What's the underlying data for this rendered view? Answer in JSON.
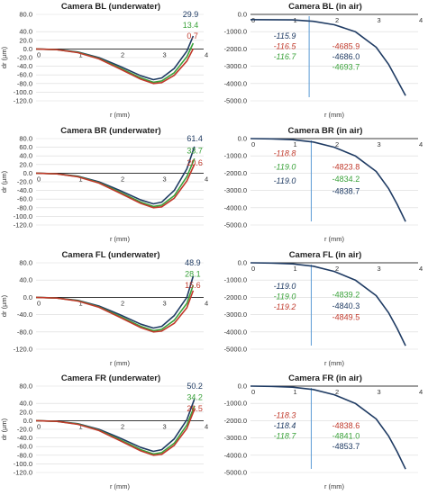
{
  "colors": {
    "blue": "#1F3B63",
    "green": "#3AA23A",
    "red": "#C0392B",
    "vline": "#5B9BD5",
    "grid": "#D9D9D9",
    "axis": "#000000"
  },
  "chart_data": [
    {
      "id": "bl-water",
      "type": "line",
      "title": "Camera BL (underwater)",
      "xlabel": "r (mm)",
      "ylabel": "dr (µm)",
      "xlim": [
        0,
        4
      ],
      "ylim": [
        -120,
        80
      ],
      "yticks": [
        "80.0",
        "40.0",
        "20.0",
        "0.0",
        "-20.0",
        "-40.0",
        "-60.0",
        "-80.0",
        "-100.0",
        "-120.0"
      ],
      "ytick_values": [
        80,
        40,
        20,
        0,
        -20,
        -40,
        -60,
        -80,
        -100,
        -120
      ],
      "xticks": [
        "0",
        "1",
        "2",
        "3",
        "4"
      ],
      "xtick_values": [
        0,
        1,
        2,
        3,
        4
      ],
      "grid": true,
      "vline": null,
      "series": [
        {
          "color": "blue",
          "x": [
            0,
            0.5,
            1,
            1.5,
            2,
            2.5,
            2.8,
            3.0,
            3.3,
            3.6,
            3.75
          ],
          "y": [
            0,
            -1.5,
            -7,
            -20,
            -40,
            -62,
            -71,
            -67,
            -45,
            -5,
            29.9
          ]
        },
        {
          "color": "green",
          "x": [
            0,
            0.5,
            1,
            1.5,
            2,
            2.5,
            2.8,
            3.0,
            3.3,
            3.6,
            3.75
          ],
          "y": [
            0,
            -1.6,
            -8,
            -22,
            -44,
            -67,
            -77,
            -74,
            -55,
            -18,
            13.4
          ]
        },
        {
          "color": "red",
          "x": [
            0,
            0.5,
            1,
            1.5,
            2,
            2.5,
            2.8,
            3.0,
            3.3,
            3.6,
            3.75
          ],
          "y": [
            0,
            -1.7,
            -8.5,
            -23,
            -46,
            -70,
            -80,
            -78,
            -61,
            -28,
            0.7
          ]
        }
      ],
      "labels": [
        {
          "text": "29.9",
          "color": "blue",
          "italic": false,
          "x": 3.5,
          "y": 80
        },
        {
          "text": "13.4",
          "color": "green",
          "italic": false,
          "x": 3.5,
          "y": 55
        },
        {
          "text": "0.7",
          "color": "red",
          "italic": false,
          "x": 3.6,
          "y": 30
        }
      ]
    },
    {
      "id": "bl-air",
      "type": "line",
      "title": "Camera BL (in air)",
      "xlabel": "r (mm)",
      "ylabel": "",
      "xlim": [
        0,
        4
      ],
      "ylim": [
        -5000,
        0
      ],
      "yticks": [
        "0.0",
        "-1000.0",
        "-2000.0",
        "-3000.0",
        "-4000.0",
        "-5000.0"
      ],
      "ytick_values": [
        0,
        -1000,
        -2000,
        -3000,
        -4000,
        -5000
      ],
      "xticks": [
        "0",
        "1",
        "2",
        "3",
        "4"
      ],
      "xtick_values": [
        0,
        1,
        2,
        3,
        4
      ],
      "grid": true,
      "vline": 1.4,
      "series": [
        {
          "color": "blue",
          "x": [
            0,
            1,
            1.5,
            2,
            2.5,
            3,
            3.3,
            3.5,
            3.7
          ],
          "y": [
            -300,
            -318,
            -400,
            -600,
            -1000,
            -1900,
            -2900,
            -3800,
            -4700
          ]
        }
      ],
      "labels": [
        {
          "text": "-115.9",
          "color": "blue",
          "italic": true,
          "x": 0.55,
          "y": -1250
        },
        {
          "text": "-116.5",
          "color": "red",
          "italic": true,
          "x": 0.55,
          "y": -1850
        },
        {
          "text": "-116.7",
          "color": "green",
          "italic": true,
          "x": 0.55,
          "y": -2450
        },
        {
          "text": "-4685.9",
          "color": "red",
          "italic": false,
          "x": 1.95,
          "y": -1850
        },
        {
          "text": "-4686.0",
          "color": "blue",
          "italic": false,
          "x": 1.95,
          "y": -2450
        },
        {
          "text": "-4693.7",
          "color": "green",
          "italic": false,
          "x": 1.95,
          "y": -3050
        }
      ]
    },
    {
      "id": "br-water",
      "type": "line",
      "title": "Camera BR (underwater)",
      "xlabel": "r (mm)",
      "ylabel": "dr (µm)",
      "xlim": [
        0,
        4
      ],
      "ylim": [
        -120,
        80
      ],
      "yticks": [
        "80.0",
        "60.0",
        "40.0",
        "20.0",
        "0.0",
        "-20.0",
        "-40.0",
        "-60.0",
        "-80.0",
        "-100.0",
        "-120.0"
      ],
      "ytick_values": [
        80,
        60,
        40,
        20,
        0,
        -20,
        -40,
        -60,
        -80,
        -100,
        -120
      ],
      "xticks": [
        "0",
        "1",
        "2",
        "3",
        "4"
      ],
      "xtick_values": [
        0,
        1,
        2,
        3,
        4
      ],
      "grid": true,
      "vline": null,
      "series": [
        {
          "color": "blue",
          "x": [
            0,
            0.5,
            1,
            1.5,
            2,
            2.5,
            2.8,
            3.0,
            3.3,
            3.6,
            3.78
          ],
          "y": [
            0,
            -1.5,
            -7,
            -20,
            -40,
            -62,
            -71,
            -67,
            -40,
            10,
            61.4
          ]
        },
        {
          "color": "green",
          "x": [
            0,
            0.5,
            1,
            1.5,
            2,
            2.5,
            2.8,
            3.0,
            3.3,
            3.6,
            3.78
          ],
          "y": [
            0,
            -1.6,
            -8,
            -22,
            -44,
            -67,
            -77,
            -74,
            -52,
            -8,
            33.7
          ]
        },
        {
          "color": "red",
          "x": [
            0,
            0.5,
            1,
            1.5,
            2,
            2.5,
            2.8,
            3.0,
            3.3,
            3.6,
            3.78
          ],
          "y": [
            0,
            -1.7,
            -8.5,
            -23,
            -46,
            -70,
            -80,
            -78,
            -58,
            -18,
            20.6
          ]
        }
      ],
      "labels": [
        {
          "text": "61.4",
          "color": "blue",
          "italic": false,
          "x": 3.6,
          "y": 80
        },
        {
          "text": "33.7",
          "color": "green",
          "italic": false,
          "x": 3.6,
          "y": 52
        },
        {
          "text": "20.6",
          "color": "red",
          "italic": false,
          "x": 3.6,
          "y": 24
        }
      ]
    },
    {
      "id": "br-air",
      "type": "line",
      "title": "Camera BR (in air)",
      "xlabel": "r (mm)",
      "ylabel": "",
      "xlim": [
        0,
        4
      ],
      "ylim": [
        -5000,
        0
      ],
      "yticks": [
        "0.0",
        "-1000.0",
        "-2000.0",
        "-3000.0",
        "-4000.0",
        "-5000.0"
      ],
      "ytick_values": [
        0,
        -1000,
        -2000,
        -3000,
        -4000,
        -5000
      ],
      "xticks": [
        "0",
        "1",
        "2",
        "3",
        "4"
      ],
      "xtick_values": [
        0,
        1,
        2,
        3,
        4
      ],
      "grid": true,
      "vline": 1.45,
      "series": [
        {
          "color": "blue",
          "x": [
            0,
            0.5,
            1,
            1.5,
            2,
            2.5,
            3,
            3.3,
            3.5,
            3.7
          ],
          "y": [
            0,
            -15,
            -60,
            -200,
            -500,
            -1000,
            -1900,
            -2900,
            -3800,
            -4800
          ]
        }
      ],
      "labels": [
        {
          "text": "-118.8",
          "color": "red",
          "italic": true,
          "x": 0.55,
          "y": -850
        },
        {
          "text": "-119.0",
          "color": "green",
          "italic": true,
          "x": 0.55,
          "y": -1650
        },
        {
          "text": "-119.0",
          "color": "blue",
          "italic": true,
          "x": 0.55,
          "y": -2450
        },
        {
          "text": "-4823.8",
          "color": "red",
          "italic": false,
          "x": 1.95,
          "y": -1650
        },
        {
          "text": "-4834.2",
          "color": "green",
          "italic": false,
          "x": 1.95,
          "y": -2350
        },
        {
          "text": "-4838.7",
          "color": "blue",
          "italic": false,
          "x": 1.95,
          "y": -3050
        }
      ]
    },
    {
      "id": "fl-water",
      "type": "line",
      "title": "Camera FL (underwater)",
      "xlabel": "r (mm)",
      "ylabel": "dr (µm)",
      "xlim": [
        0,
        4
      ],
      "ylim": [
        -120,
        80
      ],
      "yticks": [
        "80.0",
        "40.0",
        "0.0",
        "-40.0",
        "-80.0",
        "-120.0"
      ],
      "ytick_values": [
        80,
        40,
        0,
        -40,
        -80,
        -120
      ],
      "xticks": [
        "0",
        "1",
        "2",
        "3",
        "4"
      ],
      "xtick_values": [
        0,
        1,
        2,
        3,
        4
      ],
      "grid": true,
      "vline": null,
      "series": [
        {
          "color": "blue",
          "x": [
            0,
            0.5,
            1,
            1.5,
            2,
            2.5,
            2.8,
            3.0,
            3.3,
            3.6,
            3.75
          ],
          "y": [
            0,
            -1.5,
            -7,
            -20,
            -40,
            -62,
            -71,
            -67,
            -42,
            0,
            48.9
          ]
        },
        {
          "color": "green",
          "x": [
            0,
            0.5,
            1,
            1.5,
            2,
            2.5,
            2.8,
            3.0,
            3.3,
            3.6,
            3.75
          ],
          "y": [
            0,
            -1.6,
            -8,
            -22,
            -44,
            -67,
            -77,
            -74,
            -53,
            -14,
            28.1
          ]
        },
        {
          "color": "red",
          "x": [
            0,
            0.5,
            1,
            1.5,
            2,
            2.5,
            2.8,
            3.0,
            3.3,
            3.6,
            3.75
          ],
          "y": [
            0,
            -1.7,
            -8.5,
            -23,
            -46,
            -70,
            -80,
            -78,
            -60,
            -24,
            15.6
          ]
        }
      ],
      "labels": [
        {
          "text": "48.9",
          "color": "blue",
          "italic": false,
          "x": 3.55,
          "y": 80
        },
        {
          "text": "28.1",
          "color": "green",
          "italic": false,
          "x": 3.55,
          "y": 54
        },
        {
          "text": "15.6",
          "color": "red",
          "italic": false,
          "x": 3.55,
          "y": 28
        }
      ]
    },
    {
      "id": "fl-air",
      "type": "line",
      "title": "Camera FL (in air)",
      "xlabel": "r (mm)",
      "ylabel": "",
      "xlim": [
        0,
        4
      ],
      "ylim": [
        -5000,
        0
      ],
      "yticks": [
        "0.0",
        "-1000.0",
        "-2000.0",
        "-3000.0",
        "-4000.0",
        "-5000.0"
      ],
      "ytick_values": [
        0,
        -1000,
        -2000,
        -3000,
        -4000,
        -5000
      ],
      "xticks": [
        "0",
        "1",
        "2",
        "3",
        "4"
      ],
      "xtick_values": [
        0,
        1,
        2,
        3,
        4
      ],
      "grid": true,
      "vline": 1.45,
      "series": [
        {
          "color": "blue",
          "x": [
            0,
            0.5,
            1,
            1.5,
            2,
            2.5,
            3,
            3.3,
            3.5,
            3.7
          ],
          "y": [
            0,
            -15,
            -60,
            -200,
            -500,
            -1000,
            -1900,
            -2900,
            -3800,
            -4800
          ]
        }
      ],
      "labels": [
        {
          "text": "-119.0",
          "color": "blue",
          "italic": true,
          "x": 0.55,
          "y": -1350
        },
        {
          "text": "-119.0",
          "color": "green",
          "italic": true,
          "x": 0.55,
          "y": -1950
        },
        {
          "text": "-119.2",
          "color": "red",
          "italic": true,
          "x": 0.55,
          "y": -2550
        },
        {
          "text": "-4839.2",
          "color": "green",
          "italic": false,
          "x": 1.95,
          "y": -1850
        },
        {
          "text": "-4840.3",
          "color": "blue",
          "italic": false,
          "x": 1.95,
          "y": -2500
        },
        {
          "text": "-4849.5",
          "color": "red",
          "italic": false,
          "x": 1.95,
          "y": -3150
        }
      ]
    },
    {
      "id": "fr-water",
      "type": "line",
      "title": "Camera FR (underwater)",
      "xlabel": "r (mm)",
      "ylabel": "dr (µm)",
      "xlim": [
        0,
        4
      ],
      "ylim": [
        -120,
        80
      ],
      "yticks": [
        "80.0",
        "40.0",
        "20.0",
        "0.0",
        "-20.0",
        "-40.0",
        "-60.0",
        "-80.0",
        "-100.0",
        "-120.0"
      ],
      "ytick_values": [
        80,
        40,
        20,
        0,
        -20,
        -40,
        -60,
        -80,
        -100,
        -120
      ],
      "xticks": [
        "0",
        "1",
        "2",
        "3",
        "4"
      ],
      "xtick_values": [
        0,
        1,
        2,
        3,
        4
      ],
      "grid": true,
      "vline": null,
      "series": [
        {
          "color": "blue",
          "x": [
            0,
            0.5,
            1,
            1.5,
            2,
            2.5,
            2.8,
            3.0,
            3.3,
            3.6,
            3.78
          ],
          "y": [
            0,
            -1.5,
            -7,
            -20,
            -40,
            -62,
            -71,
            -67,
            -42,
            2,
            50.2
          ]
        },
        {
          "color": "green",
          "x": [
            0,
            0.5,
            1,
            1.5,
            2,
            2.5,
            2.8,
            3.0,
            3.3,
            3.6,
            3.78
          ],
          "y": [
            0,
            -1.6,
            -8,
            -22,
            -44,
            -67,
            -77,
            -74,
            -52,
            -10,
            34.2
          ]
        },
        {
          "color": "red",
          "x": [
            0,
            0.5,
            1,
            1.5,
            2,
            2.5,
            2.8,
            3.0,
            3.3,
            3.6,
            3.78
          ],
          "y": [
            0,
            -1.7,
            -8.5,
            -23,
            -46,
            -70,
            -80,
            -78,
            -57,
            -18,
            26.5
          ]
        }
      ],
      "labels": [
        {
          "text": "50.2",
          "color": "blue",
          "italic": false,
          "x": 3.6,
          "y": 80
        },
        {
          "text": "34.2",
          "color": "green",
          "italic": false,
          "x": 3.6,
          "y": 54
        },
        {
          "text": "26.5",
          "color": "red",
          "italic": false,
          "x": 3.6,
          "y": 28
        }
      ]
    },
    {
      "id": "fr-air",
      "type": "line",
      "title": "Camera FR (in air)",
      "xlabel": "r (mm)",
      "ylabel": "",
      "xlim": [
        0,
        4
      ],
      "ylim": [
        -5000,
        0
      ],
      "yticks": [
        "0.0",
        "-1000.0",
        "-2000.0",
        "-3000.0",
        "-4000.0",
        "-5000.0"
      ],
      "ytick_values": [
        0,
        -1000,
        -2000,
        -3000,
        -4000,
        -5000
      ],
      "xticks": [
        "0",
        "1",
        "2",
        "3",
        "4"
      ],
      "xtick_values": [
        0,
        1,
        2,
        3,
        4
      ],
      "grid": true,
      "vline": 1.45,
      "series": [
        {
          "color": "blue",
          "x": [
            0,
            0.5,
            1,
            1.5,
            2,
            2.5,
            3,
            3.3,
            3.5,
            3.7
          ],
          "y": [
            0,
            -15,
            -60,
            -200,
            -500,
            -1000,
            -1900,
            -2900,
            -3800,
            -4800
          ]
        }
      ],
      "labels": [
        {
          "text": "-118.3",
          "color": "red",
          "italic": true,
          "x": 0.55,
          "y": -1700
        },
        {
          "text": "-118.4",
          "color": "blue",
          "italic": true,
          "x": 0.55,
          "y": -2300
        },
        {
          "text": "-118.7",
          "color": "green",
          "italic": true,
          "x": 0.55,
          "y": -2900
        },
        {
          "text": "-4838.6",
          "color": "red",
          "italic": false,
          "x": 1.95,
          "y": -2300
        },
        {
          "text": "-4841.0",
          "color": "green",
          "italic": false,
          "x": 1.95,
          "y": -2900
        },
        {
          "text": "-4853.7",
          "color": "blue",
          "italic": false,
          "x": 1.95,
          "y": -3500
        }
      ]
    }
  ]
}
